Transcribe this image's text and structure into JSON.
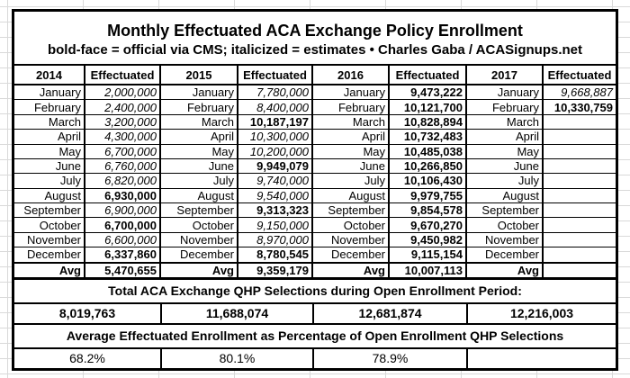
{
  "title": "Monthly Effectuated ACA Exchange Policy Enrollment",
  "subtitle": "bold-face = official via CMS; italicized = estimates  •  Charles Gaba / ACASignups.net",
  "colors": {
    "text": "#000000",
    "background": "#ffffff",
    "gridline": "#d9d9d9",
    "table_border": "#000000"
  },
  "table": {
    "value_header": "Effectuated",
    "avg_label": "Avg",
    "months": [
      "January",
      "February",
      "March",
      "April",
      "May",
      "June",
      "July",
      "August",
      "September",
      "October",
      "November",
      "December"
    ],
    "years": [
      {
        "year": "2014",
        "values": [
          {
            "text": "2,000,000",
            "official": false
          },
          {
            "text": "2,400,000",
            "official": false
          },
          {
            "text": "3,200,000",
            "official": false
          },
          {
            "text": "4,300,000",
            "official": false
          },
          {
            "text": "6,700,000",
            "official": false
          },
          {
            "text": "6,760,000",
            "official": false
          },
          {
            "text": "6,820,000",
            "official": false
          },
          {
            "text": "6,930,000",
            "official": true
          },
          {
            "text": "6,900,000",
            "official": false
          },
          {
            "text": "6,700,000",
            "official": true
          },
          {
            "text": "6,600,000",
            "official": false
          },
          {
            "text": "6,337,860",
            "official": true
          }
        ],
        "avg": {
          "text": "5,470,655",
          "official": true
        }
      },
      {
        "year": "2015",
        "values": [
          {
            "text": "7,780,000",
            "official": false
          },
          {
            "text": "8,400,000",
            "official": false
          },
          {
            "text": "10,187,197",
            "official": true
          },
          {
            "text": "10,300,000",
            "official": false
          },
          {
            "text": "10,200,000",
            "official": false
          },
          {
            "text": "9,949,079",
            "official": true
          },
          {
            "text": "9,740,000",
            "official": false
          },
          {
            "text": "9,540,000",
            "official": false
          },
          {
            "text": "9,313,323",
            "official": true
          },
          {
            "text": "9,150,000",
            "official": false
          },
          {
            "text": "8,970,000",
            "official": false
          },
          {
            "text": "8,780,545",
            "official": true
          }
        ],
        "avg": {
          "text": "9,359,179",
          "official": true
        }
      },
      {
        "year": "2016",
        "values": [
          {
            "text": "9,473,222",
            "official": true
          },
          {
            "text": "10,121,700",
            "official": true
          },
          {
            "text": "10,828,894",
            "official": true
          },
          {
            "text": "10,732,483",
            "official": true
          },
          {
            "text": "10,485,038",
            "official": true
          },
          {
            "text": "10,266,850",
            "official": true
          },
          {
            "text": "10,106,430",
            "official": true
          },
          {
            "text": "9,979,755",
            "official": true
          },
          {
            "text": "9,854,578",
            "official": true
          },
          {
            "text": "9,670,270",
            "official": true
          },
          {
            "text": "9,450,982",
            "official": true
          },
          {
            "text": "9,115,154",
            "official": true
          }
        ],
        "avg": {
          "text": "10,007,113",
          "official": true
        }
      },
      {
        "year": "2017",
        "values": [
          {
            "text": "9,668,887",
            "official": false
          },
          {
            "text": "10,330,759",
            "official": true
          },
          {
            "text": "",
            "official": false
          },
          {
            "text": "",
            "official": false
          },
          {
            "text": "",
            "official": false
          },
          {
            "text": "",
            "official": false
          },
          {
            "text": "",
            "official": false
          },
          {
            "text": "",
            "official": false
          },
          {
            "text": "",
            "official": false
          },
          {
            "text": "",
            "official": false
          },
          {
            "text": "",
            "official": false
          },
          {
            "text": "",
            "official": false
          }
        ],
        "avg": {
          "text": "",
          "official": false
        }
      }
    ]
  },
  "qhp_section": {
    "header": "Total ACA Exchange QHP Selections during Open Enrollment Period:",
    "values": [
      "8,019,763",
      "11,688,074",
      "12,681,874",
      "12,216,003"
    ]
  },
  "pct_section": {
    "header": "Average Effectuated Enrollment as Percentage of Open Enrollment QHP Selections",
    "values": [
      "68.2%",
      "80.1%",
      "78.9%",
      ""
    ]
  }
}
